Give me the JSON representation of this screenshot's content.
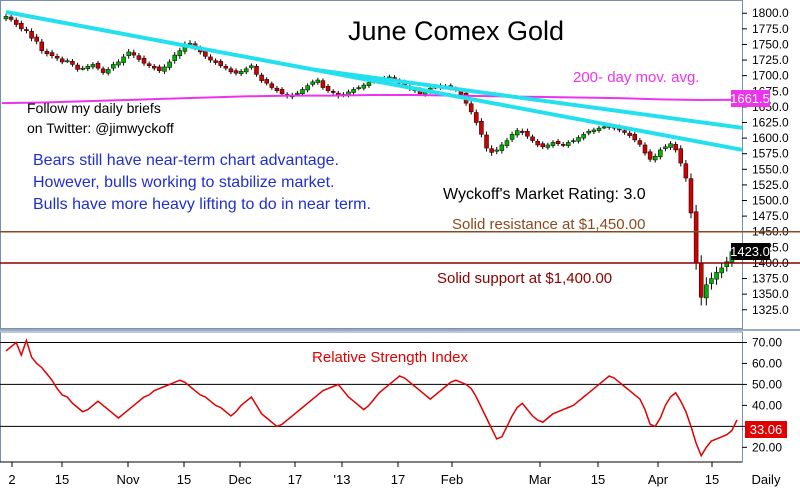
{
  "chart_data": [
    {
      "type": "candlestick",
      "title": "June Comex Gold",
      "ylim": [
        1315,
        1810
      ],
      "y_ticks": [
        1325,
        1350,
        1375,
        1400,
        1425,
        1450,
        1475,
        1500,
        1525,
        1550,
        1575,
        1600,
        1625,
        1650,
        1675,
        1700,
        1725,
        1750,
        1775,
        1800
      ],
      "y_tick_labels": [
        "1325.0",
        "1350.0",
        "1375.0",
        "1400.0",
        "1425.0",
        "1450.0",
        "1475.0",
        "1500.0",
        "1525.0",
        "1550.0",
        "1575.0",
        "1600.0",
        "1625.0",
        "1650.0",
        "1675.0",
        "1700.0",
        "1725.0",
        "1750.0",
        "1775.0",
        "1800.0"
      ],
      "grid": false,
      "x_tick_labels": [
        "2",
        "15",
        "Nov",
        "15",
        "Dec",
        "17",
        "'13",
        "17",
        "Feb",
        "Mar",
        "15",
        "Apr",
        "15",
        "Daily"
      ],
      "ohlc_close": [
        1795,
        1790,
        1782,
        1775,
        1772,
        1760,
        1755,
        1740,
        1735,
        1732,
        1728,
        1722,
        1724,
        1718,
        1710,
        1712,
        1715,
        1718,
        1712,
        1705,
        1710,
        1718,
        1722,
        1730,
        1738,
        1733,
        1726,
        1720,
        1716,
        1712,
        1708,
        1714,
        1722,
        1733,
        1740,
        1750,
        1752,
        1745,
        1738,
        1731,
        1725,
        1721,
        1716,
        1712,
        1706,
        1704,
        1707,
        1711,
        1716,
        1702,
        1692,
        1688,
        1681,
        1676,
        1671,
        1667,
        1669,
        1672,
        1678,
        1684,
        1690,
        1693,
        1681,
        1676,
        1673,
        1667,
        1670,
        1674,
        1678,
        1681,
        1685,
        1689,
        1691,
        1693,
        1696,
        1698,
        1693,
        1688,
        1683,
        1679,
        1676,
        1671,
        1675,
        1680,
        1682,
        1684,
        1682,
        1680,
        1678,
        1670,
        1656,
        1642,
        1625,
        1606,
        1584,
        1577,
        1581,
        1589,
        1596,
        1606,
        1612,
        1609,
        1603,
        1596,
        1589,
        1586,
        1589,
        1593,
        1591,
        1589,
        1593,
        1596,
        1601,
        1606,
        1611,
        1613,
        1616,
        1618,
        1620,
        1616,
        1613,
        1609,
        1604,
        1597,
        1590,
        1576,
        1566,
        1571,
        1581,
        1586,
        1591,
        1581,
        1560,
        1536,
        1480,
        1400,
        1345,
        1365,
        1375,
        1385,
        1392,
        1402,
        1418,
        1423
      ],
      "ohlc_spread": [
        6,
        6,
        7,
        7,
        7,
        8,
        8,
        8,
        7,
        7,
        7,
        6,
        6,
        6,
        6,
        6,
        6,
        6,
        6,
        6,
        6,
        7,
        7,
        8,
        8,
        8,
        7,
        7,
        6,
        6,
        6,
        7,
        7,
        8,
        8,
        8,
        8,
        7,
        7,
        7,
        7,
        6,
        6,
        6,
        6,
        6,
        6,
        6,
        6,
        6,
        6,
        6,
        6,
        6,
        6,
        6,
        6,
        6,
        6,
        6,
        6,
        6,
        6,
        6,
        6,
        6,
        6,
        6,
        6,
        6,
        6,
        6,
        6,
        6,
        6,
        6,
        6,
        6,
        6,
        6,
        6,
        6,
        6,
        6,
        6,
        6,
        6,
        6,
        6,
        6,
        7,
        7,
        8,
        8,
        9,
        9,
        8,
        8,
        7,
        7,
        7,
        7,
        7,
        6,
        6,
        6,
        6,
        6,
        6,
        6,
        6,
        6,
        6,
        6,
        6,
        6,
        6,
        6,
        6,
        6,
        6,
        6,
        6,
        6,
        7,
        7,
        7,
        7,
        7,
        7,
        7,
        7,
        9,
        10,
        14,
        18,
        22,
        20,
        16,
        15,
        14,
        13,
        12,
        12
      ],
      "ma200": [
        1656,
        1657,
        1659,
        1661,
        1663,
        1665,
        1667,
        1668,
        1668,
        1669,
        1669,
        1668,
        1667,
        1666,
        1665,
        1664,
        1662,
        1661,
        1661.5
      ],
      "trendline1": [
        [
          0,
          1802
        ],
        [
          148,
          1575
        ]
      ],
      "trendline2": [
        [
          60,
          1710
        ],
        [
          148,
          1612
        ]
      ],
      "horizontal_lines": [
        1450,
        1400
      ],
      "last_price_label": "1423.0",
      "ma_label": "1661.5",
      "annotations": {
        "ma_label_text": "200- day mov. avg.",
        "twitter_line1": "Follow my daily briefs",
        "twitter_line2": "on Twitter:  @jimwyckoff",
        "comment_line1": "Bears still have near-term chart advantage.",
        "comment_line2": "However, bulls working to stabilize market.",
        "comment_line3": "Bulls have more heavy lifting to do in near term.",
        "rating": "Wyckoff's Market Rating: 3.0",
        "resistance": "Solid resistance at $1,450.00",
        "support": "Solid support at $1,400.00"
      },
      "colors": {
        "up": "#00b000",
        "down": "#d00000",
        "trend": "#22e0ee",
        "ma": "#ee33ee",
        "resistance": "#8a4a1e",
        "support": "#8b0000",
        "blue_text": "#1f2fd0",
        "price_box": "#000000",
        "ma_box": "#ee33ee"
      }
    },
    {
      "type": "line",
      "title": "Relative Strength Index",
      "ylim": [
        13,
        75
      ],
      "y_ticks": [
        20,
        30,
        40,
        50,
        60,
        70
      ],
      "y_tick_labels": [
        "20.00",
        "30.00",
        "40.00",
        "50.00",
        "60.00",
        "70.00"
      ],
      "reference_lines": [
        30,
        50,
        70
      ],
      "values": [
        66,
        68,
        70,
        64,
        71,
        63,
        60,
        58,
        55,
        52,
        48,
        45,
        44,
        41,
        39,
        37,
        38,
        40,
        42,
        40,
        38,
        36,
        34,
        36,
        38,
        40,
        42,
        44,
        45,
        47,
        48,
        49,
        50,
        51,
        52,
        51,
        49,
        47,
        45,
        44,
        42,
        40,
        39,
        37,
        35,
        37,
        40,
        42,
        44,
        40,
        36,
        34,
        32,
        30,
        31,
        33,
        35,
        37,
        39,
        41,
        43,
        45,
        47,
        48,
        49,
        50,
        47,
        44,
        42,
        40,
        38,
        40,
        43,
        46,
        48,
        50,
        52,
        54,
        53,
        51,
        49,
        47,
        45,
        43,
        45,
        47,
        49,
        51,
        52,
        51,
        50,
        48,
        44,
        39,
        34,
        29,
        24,
        25,
        30,
        35,
        39,
        41,
        38,
        35,
        33,
        32,
        34,
        36,
        37,
        38,
        39,
        40,
        42,
        44,
        46,
        48,
        50,
        52,
        54,
        53,
        51,
        49,
        47,
        45,
        43,
        38,
        31,
        30,
        34,
        40,
        44,
        46,
        42,
        37,
        30,
        22,
        16,
        20,
        23,
        24,
        25,
        26,
        28,
        33.06
      ],
      "last_value_label": "33.06",
      "colors": {
        "line": "#e00000",
        "ref_line": "#000000",
        "value_box": "#e00000"
      }
    }
  ]
}
